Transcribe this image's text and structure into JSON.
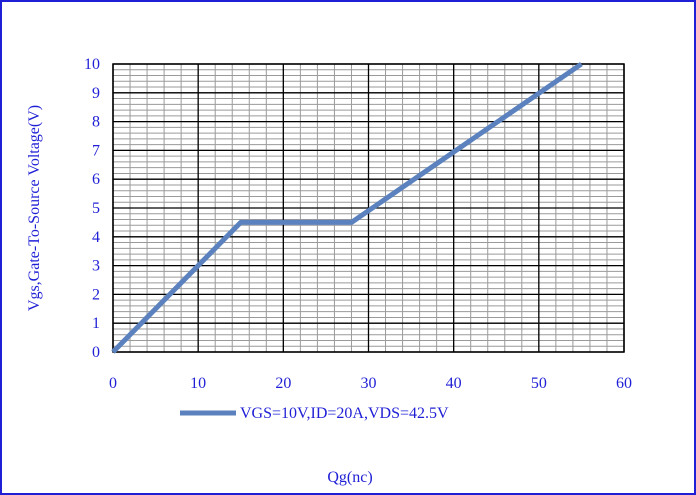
{
  "colors": {
    "frame_border": "#1f1fd6",
    "text": "#1f1fd6",
    "series_line": "#5b82be",
    "grid_major": "#000000",
    "grid_minor": "#9a9a9a"
  },
  "chart_data": {
    "type": "line",
    "title": "",
    "xlabel": "Qg(nc)",
    "ylabel": "Vgs,Gate-To-Source Voltage(V)",
    "xlim": [
      0,
      60
    ],
    "ylim": [
      0,
      10
    ],
    "x_ticks": [
      "0",
      "10",
      "20",
      "30",
      "40",
      "50",
      "60"
    ],
    "y_ticks": [
      "0",
      "1",
      "2",
      "3",
      "4",
      "5",
      "6",
      "7",
      "8",
      "9",
      "10"
    ],
    "grid": true,
    "legend_position": "bottom",
    "series": [
      {
        "name": "VGS=10V,ID=20A,VDS=42.5V",
        "x": [
          0,
          15,
          28,
          55
        ],
        "y": [
          0,
          4.5,
          4.5,
          10
        ]
      }
    ]
  }
}
